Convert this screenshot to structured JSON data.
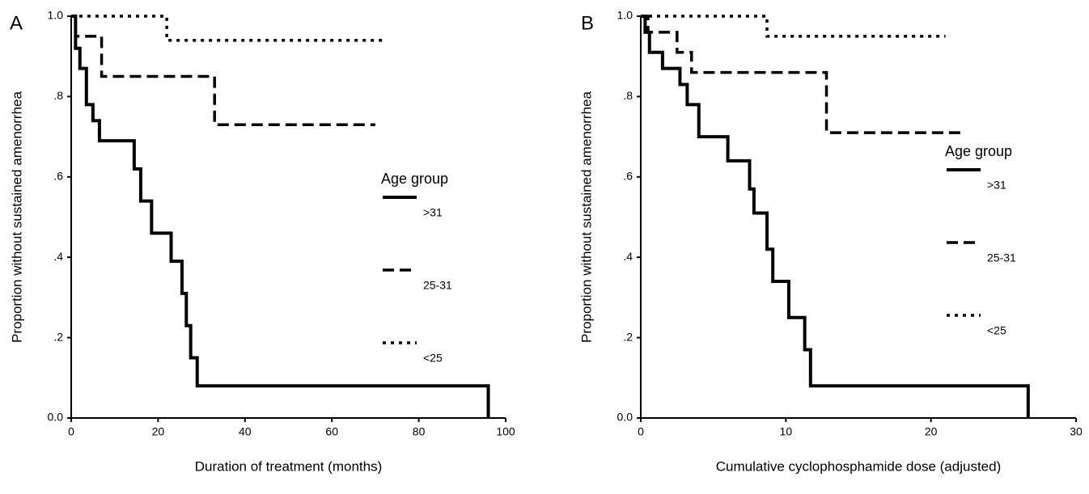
{
  "chart_data": [
    {
      "type": "step",
      "panel_label": "A",
      "x_label": "Duration of treatment (months)",
      "y_label": "Proportion without sustained amenorrhea",
      "legend_title": "Age group",
      "xlim": [
        0,
        100
      ],
      "xticks": [
        0,
        20,
        40,
        60,
        80,
        100
      ],
      "ylim": [
        0,
        1
      ],
      "yticks": [
        {
          "value": 0,
          "label": "0.0"
        },
        {
          "value": 0.2,
          "label": ".2"
        },
        {
          "value": 0.4,
          "label": ".4"
        },
        {
          "value": 0.6,
          "label": ".6"
        },
        {
          "value": 0.8,
          "label": ".8"
        },
        {
          "value": 1,
          "label": "1.0"
        }
      ],
      "series": [
        {
          "name": ">31",
          "color": "#000000",
          "linestyle": "solid",
          "x": [
            0,
            1,
            2,
            3.5,
            5,
            6.5,
            14.5,
            16,
            18.5,
            23,
            25.5,
            26.5,
            27.5,
            29,
            96
          ],
          "values": [
            1,
            0.92,
            0.87,
            0.78,
            0.74,
            0.69,
            0.62,
            0.54,
            0.46,
            0.39,
            0.31,
            0.23,
            0.15,
            0.08,
            0
          ]
        },
        {
          "name": "25-31",
          "color": "#000000",
          "linestyle": "dashed",
          "x": [
            0,
            1,
            7,
            33,
            70
          ],
          "values": [
            1,
            0.95,
            0.85,
            0.73,
            0.73
          ]
        },
        {
          "name": "<25",
          "color": "#000000",
          "linestyle": "dotted",
          "x": [
            0,
            22,
            72
          ],
          "values": [
            1,
            0.94,
            0.94
          ]
        }
      ]
    },
    {
      "type": "step",
      "panel_label": "B",
      "x_label": "Cumulative cyclophosphamide dose (adjusted)",
      "y_label": "Proportion without sustained amenorrhea",
      "legend_title": "Age group",
      "xlim": [
        0,
        30
      ],
      "xticks": [
        0,
        10,
        20,
        30
      ],
      "ylim": [
        0,
        1
      ],
      "yticks": [
        {
          "value": 0,
          "label": "0.0"
        },
        {
          "value": 0.2,
          "label": ".2"
        },
        {
          "value": 0.4,
          "label": ".4"
        },
        {
          "value": 0.6,
          "label": ".6"
        },
        {
          "value": 0.8,
          "label": ".8"
        },
        {
          "value": 1,
          "label": "1.0"
        }
      ],
      "series": [
        {
          "name": ">31",
          "color": "#000000",
          "linestyle": "solid",
          "x": [
            0,
            0.3,
            0.6,
            1.5,
            2.7,
            3.2,
            4,
            6,
            7.5,
            7.8,
            8.7,
            9.1,
            10.2,
            11.3,
            11.7,
            26.7
          ],
          "values": [
            1,
            0.96,
            0.91,
            0.87,
            0.83,
            0.78,
            0.7,
            0.64,
            0.57,
            0.51,
            0.42,
            0.34,
            0.25,
            0.17,
            0.08,
            0
          ]
        },
        {
          "name": "25-31",
          "color": "#000000",
          "linestyle": "dashed",
          "x": [
            0,
            0.5,
            2.5,
            3.5,
            12.8,
            22.2
          ],
          "values": [
            1,
            0.96,
            0.91,
            0.86,
            0.71,
            0.71
          ]
        },
        {
          "name": "<25",
          "color": "#000000",
          "linestyle": "dotted",
          "x": [
            0,
            8.7,
            21
          ],
          "values": [
            1,
            0.95,
            0.95
          ]
        }
      ]
    }
  ]
}
